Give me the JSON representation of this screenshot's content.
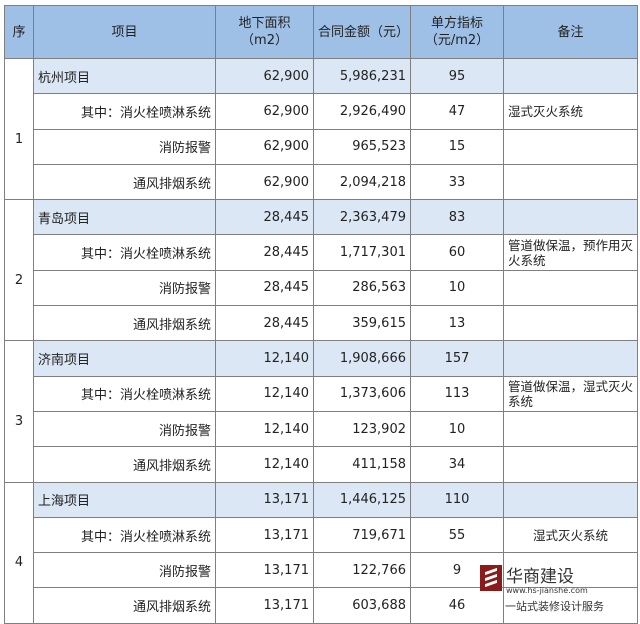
{
  "headers": [
    "序",
    "项目",
    "地下面积（m2）",
    "合同金额（元）",
    "单方指标（元/m2）",
    "备注"
  ],
  "groups": [
    {
      "seq": "1",
      "rows": [
        {
          "item": "杭州项目",
          "area": "62,900",
          "amount": "5,986,231",
          "index": "95",
          "note": ""
        },
        {
          "item": "其中：消火栓喷淋系统",
          "area": "62,900",
          "amount": "2,926,490",
          "index": "47",
          "note": "湿式灭火系统"
        },
        {
          "item": "消防报警",
          "area": "62,900",
          "amount": "965,523",
          "index": "15",
          "note": ""
        },
        {
          "item": "通风排烟系统",
          "area": "62,900",
          "amount": "2,094,218",
          "index": "33",
          "note": ""
        }
      ]
    },
    {
      "seq": "2",
      "rows": [
        {
          "item": "青岛项目",
          "area": "28,445",
          "amount": "2,363,479",
          "index": "83",
          "note": ""
        },
        {
          "item": "其中：消火栓喷淋系统",
          "area": "28,445",
          "amount": "1,717,301",
          "index": "60",
          "note": "管道做保温，预作用灭火系统"
        },
        {
          "item": "消防报警",
          "area": "28,445",
          "amount": "286,563",
          "index": "10",
          "note": ""
        },
        {
          "item": "通风排烟系统",
          "area": "28,445",
          "amount": "359,615",
          "index": "13",
          "note": ""
        }
      ]
    },
    {
      "seq": "3",
      "rows": [
        {
          "item": "济南项目",
          "area": "12,140",
          "amount": "1,908,666",
          "index": "157",
          "note": ""
        },
        {
          "item": "其中：消火栓喷淋系统",
          "area": "12,140",
          "amount": "1,373,606",
          "index": "113",
          "note": "管道做保温，湿式灭火系统"
        },
        {
          "item": "消防报警",
          "area": "12,140",
          "amount": "123,902",
          "index": "10",
          "note": ""
        },
        {
          "item": "通风排烟系统",
          "area": "12,140",
          "amount": "411,158",
          "index": "34",
          "note": ""
        }
      ]
    },
    {
      "seq": "4",
      "rows": [
        {
          "item": "上海项目",
          "area": "13,171",
          "amount": "1,446,125",
          "index": "110",
          "note": ""
        },
        {
          "item": "其中：消火栓喷淋系统",
          "area": "13,171",
          "amount": "719,671",
          "index": "55",
          "note": "湿式灭火系统"
        },
        {
          "item": "消防报警",
          "area": "13,171",
          "amount": "122,766",
          "index": "9",
          "note": ""
        },
        {
          "item": "通风排烟系统",
          "area": "13,171",
          "amount": "603,688",
          "index": "46",
          "note": ""
        }
      ]
    }
  ],
  "watermark": {
    "name": "华商建设",
    "url": "www.hs-jianshe.com",
    "slogan": "一站式装修设计服务"
  },
  "colors": {
    "header_bg": "#9fc0e6",
    "project_row_bg": "#dce7f5",
    "logo": "#8b1a1a"
  }
}
